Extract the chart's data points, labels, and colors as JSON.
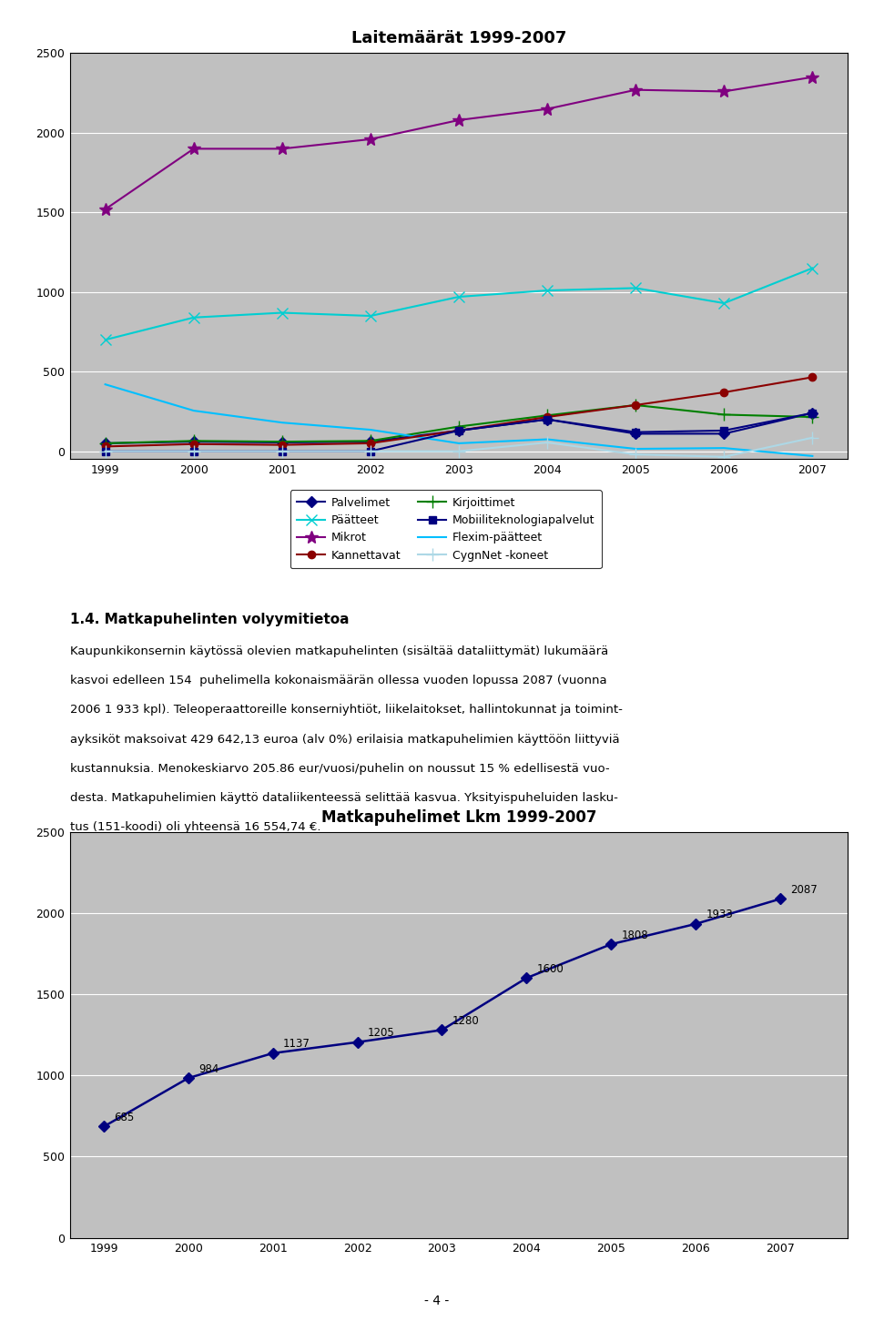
{
  "chart1_title": "Laitemäärät 1999-2007",
  "chart1_years": [
    1999,
    2000,
    2001,
    2002,
    2003,
    2004,
    2005,
    2006,
    2007
  ],
  "chart1_series": {
    "Palvelimet": {
      "values": [
        50,
        60,
        55,
        60,
        130,
        200,
        110,
        110,
        240
      ],
      "color": "#000080",
      "marker": "D",
      "linestyle": "-"
    },
    "Mikrot": {
      "values": [
        1520,
        1900,
        1900,
        1960,
        2080,
        2150,
        2270,
        2260,
        2350
      ],
      "color": "#800080",
      "marker": "*",
      "linestyle": "-"
    },
    "Kirjoittimet": {
      "values": [
        50,
        65,
        60,
        65,
        155,
        225,
        290,
        230,
        215
      ],
      "color": "#008000",
      "marker": "+",
      "linestyle": "-"
    },
    "Flexim-päätteet": {
      "values": [
        420,
        255,
        180,
        135,
        50,
        75,
        15,
        20,
        -30
      ],
      "color": "#00BFFF",
      "marker": "None",
      "linestyle": "-"
    },
    "Päätteet": {
      "values": [
        700,
        840,
        870,
        850,
        970,
        1010,
        1025,
        930,
        1150
      ],
      "color": "#00CED1",
      "marker": "x",
      "linestyle": "-"
    },
    "Kannettavat": {
      "values": [
        30,
        45,
        40,
        50,
        130,
        215,
        290,
        370,
        465
      ],
      "color": "#8B0000",
      "marker": "o",
      "linestyle": "-"
    },
    "Mobiiliteknologiapalvelut": {
      "values": [
        0,
        0,
        0,
        0,
        130,
        200,
        120,
        130,
        240
      ],
      "color": "#000080",
      "marker": "s",
      "linestyle": "-"
    },
    "CygnNet -koneet": {
      "values": [
        0,
        0,
        0,
        0,
        0,
        55,
        -20,
        -35,
        85
      ],
      "color": "#ADD8E6",
      "marker": "+",
      "linestyle": "-"
    }
  },
  "chart1_ylim": [
    -50,
    2500
  ],
  "chart1_yticks": [
    0,
    500,
    1000,
    1500,
    2000,
    2500
  ],
  "chart1_bg": "#C0C0C0",
  "text_heading": "1.4. Matkapuhelinten volyymitietoa",
  "text_body_lines": [
    "Kaupunkikonsernin käytössä olevien matkapuhelinten (sisältää dataliittymät) lukumäärä",
    "kasvoi edelleen 154  puhelimella kokonaismäärän ollessa vuoden lopussa 2087 (vuonna",
    "2006 1 933 kpl). Teleoperaattoreille konserniyhtiöt, liikelaitokset, hallintokunnat ja toimint-",
    "ayksiköt maksoivat 429 642,13 euroa (alv 0%) erilaisia matkapuhelimien käyttöön liittyviä",
    "kustannuksia. Menokeskiarvo 205.86 eur/vuosi/puhelin on noussut 15 % edellisestä vuo-",
    "desta. Matkapuhelimien käyttö dataliikenteessä selittää kasvua. Yksityispuheluiden lasku-",
    "tus (151-koodi) oli yhteensä 16 554,74 €."
  ],
  "chart2_title": "Matkapuhelimet Lkm 1999-2007",
  "chart2_years": [
    1999,
    2000,
    2001,
    2002,
    2003,
    2004,
    2005,
    2006,
    2007
  ],
  "chart2_values": [
    685,
    984,
    1137,
    1205,
    1280,
    1600,
    1808,
    1933,
    2087
  ],
  "chart2_color": "#000080",
  "chart2_marker": "D",
  "chart2_ylim": [
    0,
    2500
  ],
  "chart2_yticks": [
    0,
    500,
    1000,
    1500,
    2000,
    2500
  ],
  "chart2_bg": "#C0C0C0",
  "page_number": "- 4 -",
  "bg_color": "#FFFFFF",
  "legend_order": [
    "Palvelimet",
    "Päätteet",
    "Mikrot",
    "Kannettavat",
    "Kirjoittimet",
    "Mobiiliteknologiapalvelut",
    "Flexim-päätteet",
    "CygnNet -koneet"
  ]
}
